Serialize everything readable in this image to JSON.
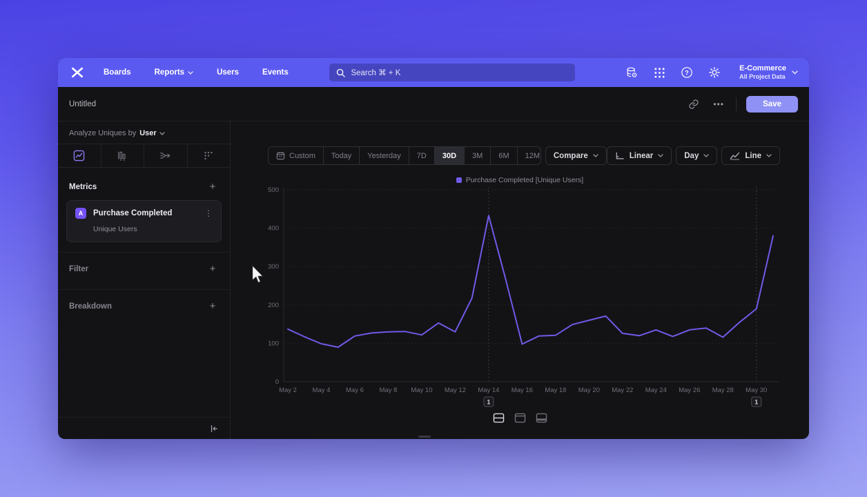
{
  "navbar": {
    "items": [
      "Boards",
      "Reports",
      "Users",
      "Events"
    ],
    "search_placeholder": "Search  ⌘ + K",
    "project_name": "E-Commerce",
    "project_scope": "All Project Data"
  },
  "header": {
    "title": "Untitled",
    "ellipsis_label": "•••",
    "save_label": "Save"
  },
  "sidebar": {
    "analyze_prefix": "Analyze Uniques by",
    "analyze_value": "User",
    "metrics_label": "Metrics",
    "plus": "+",
    "kebab": "⋮",
    "metric_badge": "A",
    "metric_name": "Purchase Completed",
    "metric_subtitle": "Unique Users",
    "filter_label": "Filter",
    "breakdown_label": "Breakdown"
  },
  "toolbar": {
    "ranges": [
      "Custom",
      "Today",
      "Yesterday",
      "7D",
      "30D",
      "3M",
      "6M",
      "12M"
    ],
    "active_range": "30D",
    "compare_label": "Compare",
    "scale_label": "Linear",
    "interval_label": "Day",
    "chart_type_label": "Line"
  },
  "chart_data": {
    "type": "line",
    "title": "",
    "legend": [
      "Purchase Completed [Unique Users]"
    ],
    "legend_position": "top-center",
    "grid": true,
    "ylim": [
      0,
      500
    ],
    "y_ticks": [
      0,
      100,
      200,
      300,
      400,
      500
    ],
    "x": [
      "May 2",
      "May 3",
      "May 4",
      "May 5",
      "May 6",
      "May 7",
      "May 8",
      "May 9",
      "May 10",
      "May 11",
      "May 12",
      "May 13",
      "May 14",
      "May 15",
      "May 16",
      "May 17",
      "May 18",
      "May 19",
      "May 20",
      "May 21",
      "May 22",
      "May 23",
      "May 24",
      "May 25",
      "May 26",
      "May 27",
      "May 28",
      "May 29",
      "May 30",
      "May 31"
    ],
    "x_tick_every": 2,
    "series": [
      {
        "name": "Purchase Completed [Unique Users]",
        "color": "#6e5be8",
        "values": [
          137,
          117,
          99,
          90,
          119,
          127,
          130,
          131,
          122,
          153,
          130,
          218,
          433,
          270,
          98,
          119,
          121,
          149,
          160,
          171,
          126,
          120,
          135,
          118,
          135,
          140,
          116,
          155,
          190,
          380
        ]
      }
    ],
    "annotations": [
      {
        "label": "1",
        "x_index": 12
      },
      {
        "label": "1",
        "x_index": 28
      }
    ]
  },
  "colors": {
    "accent": "#6e5be8",
    "navbar_bg": "#5b5af0",
    "save_button_bg": "#8f92f4",
    "window_bg": "#131316",
    "metric_badge_bg": "#7452f6"
  }
}
